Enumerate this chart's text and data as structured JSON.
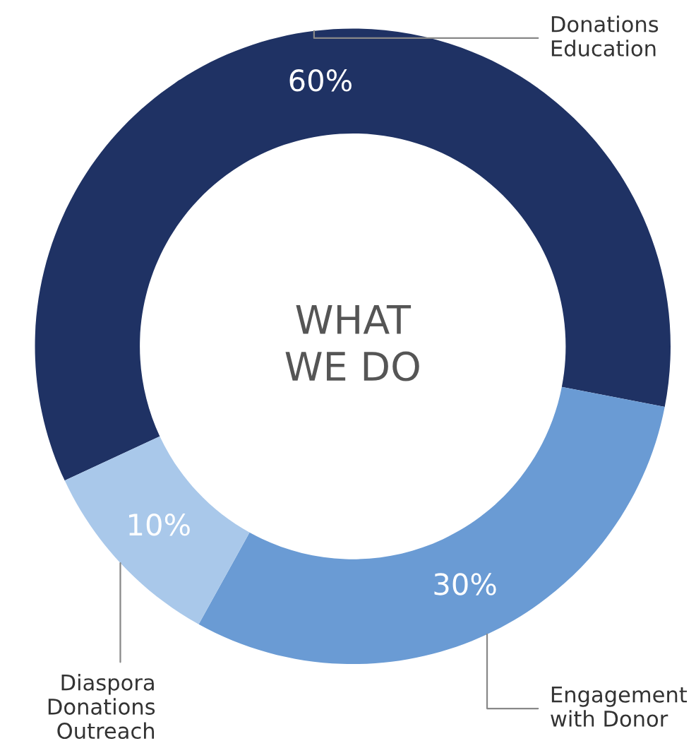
{
  "chart_data": {
    "type": "donut",
    "title": "WHAT\nWE DO",
    "categories": [
      "Donations\nEducation",
      "Engagement\nwith Donor",
      "Diaspora\nDonations\nOutreach"
    ],
    "values": [
      60,
      30,
      10
    ],
    "colors": [
      "#1f3264",
      "#6a9bd4",
      "#a9c8ea"
    ],
    "value_labels": [
      "60%",
      "30%",
      "10%"
    ],
    "legend": false
  }
}
